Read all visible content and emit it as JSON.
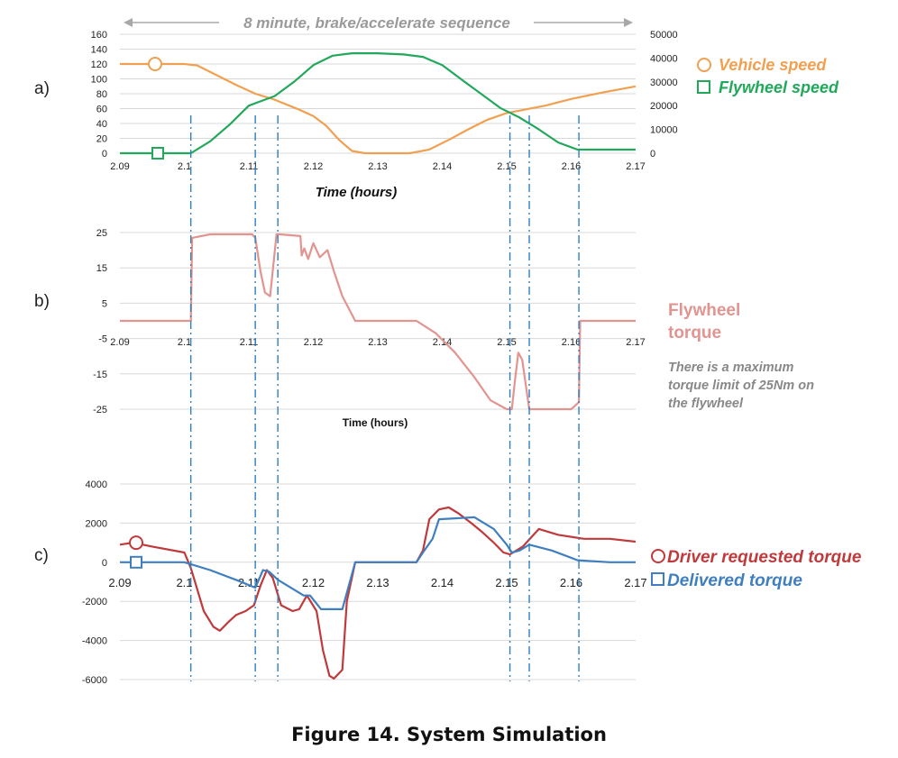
{
  "figure_caption": "Figure 14.  System Simulation",
  "panel_labels": [
    "a)",
    "b)",
    "c)"
  ],
  "sequence_label": "8 minute, brake/accelerate sequence",
  "colors": {
    "vehicle_speed": "#F0A050",
    "flywheel_speed": "#22A85A",
    "flywheel_torque": "#E29490",
    "driver_requested": "#C0393B",
    "delivered": "#3F7FBF",
    "event_lines": "#2F7FC1",
    "note": "#888888",
    "grid": "#d8d8d8"
  },
  "chart_data": [
    {
      "type": "line",
      "panel": "a)",
      "x_ticks": [
        "2.09",
        "2.1",
        "2.11",
        "2.12",
        "2.13",
        "2.14",
        "2.15",
        "2.16",
        "2.17"
      ],
      "xlabel": "Time (hours)",
      "xlim": [
        2.09,
        2.17
      ],
      "ylim_left": [
        0,
        160
      ],
      "y_ticks_left": [
        "0",
        "20",
        "40",
        "60",
        "80",
        "100",
        "120",
        "140",
        "160"
      ],
      "ylim_right": [
        0,
        50000
      ],
      "y_ticks_right": [
        "0",
        "10000",
        "20000",
        "30000",
        "40000",
        "50000"
      ],
      "grid": true,
      "legend": "right",
      "series": [
        {
          "name": "Vehicle speed",
          "axis": "left",
          "marker": "circle",
          "x": [
            2.09,
            2.1,
            2.102,
            2.105,
            2.108,
            2.111,
            2.114,
            2.118,
            2.12,
            2.122,
            2.124,
            2.126,
            2.128,
            2.13,
            2.135,
            2.138,
            2.141,
            2.144,
            2.147,
            2.15,
            2.153,
            2.156,
            2.16,
            2.165,
            2.17
          ],
          "values": [
            120,
            120,
            118,
            105,
            92,
            80,
            72,
            58,
            50,
            37,
            18,
            3,
            0,
            0,
            0,
            5,
            18,
            32,
            45,
            54,
            59,
            64,
            73,
            82,
            90
          ]
        },
        {
          "name": "Flywheel speed",
          "axis": "right",
          "marker": "square",
          "x": [
            2.09,
            2.101,
            2.104,
            2.107,
            2.11,
            2.112,
            2.114,
            2.117,
            2.12,
            2.123,
            2.126,
            2.13,
            2.134,
            2.137,
            2.14,
            2.143,
            2.146,
            2.149,
            2.152,
            2.155,
            2.158,
            2.161,
            2.165,
            2.17
          ],
          "values": [
            0,
            0,
            5000,
            12000,
            20000,
            22000,
            24000,
            30000,
            37000,
            41000,
            42000,
            42000,
            41500,
            40500,
            37000,
            31000,
            25000,
            19000,
            15000,
            10000,
            4500,
            1500,
            1500,
            1500
          ]
        }
      ]
    },
    {
      "type": "line",
      "panel": "b)",
      "x_ticks": [
        "2.09",
        "2.1",
        "2.11",
        "2.12",
        "2.13",
        "2.14",
        "2.15",
        "2.16",
        "2.17"
      ],
      "xlabel": "Time (hours)",
      "xlim": [
        2.09,
        2.17
      ],
      "ylim": [
        -25,
        25
      ],
      "y_ticks": [
        "-25",
        "-15",
        "-5",
        "5",
        "15",
        "25"
      ],
      "grid": true,
      "legend": "right",
      "series": [
        {
          "name": "Flywheel torque",
          "x": [
            2.09,
            2.101,
            2.1012,
            2.104,
            2.1105,
            2.111,
            2.1118,
            2.1125,
            2.1133,
            2.1143,
            2.1148,
            2.118,
            2.1182,
            2.1186,
            2.1192,
            2.12,
            2.121,
            2.1222,
            2.1232,
            2.1245,
            2.1265,
            2.1285,
            2.136,
            2.139,
            2.142,
            2.145,
            2.1475,
            2.15,
            2.1508,
            2.1513,
            2.1518,
            2.1524,
            2.1535,
            2.16,
            2.1612,
            2.1614,
            2.17
          ],
          "values": [
            0,
            0,
            23.5,
            24.5,
            24.5,
            23.5,
            14,
            8,
            7,
            24.5,
            24.5,
            24,
            18.5,
            20.5,
            17.5,
            22,
            18,
            20,
            14,
            7,
            0,
            0,
            0,
            -3.5,
            -9,
            -16,
            -22.5,
            -25,
            -25,
            -16.5,
            -9,
            -11,
            -25,
            -25,
            -23,
            0,
            0
          ]
        }
      ]
    },
    {
      "type": "line",
      "panel": "c)",
      "x_ticks": [
        "2.09",
        "2.1",
        "2.11",
        "2.12",
        "2.13",
        "2.14",
        "2.15",
        "2.16",
        "2.17"
      ],
      "xlim": [
        2.09,
        2.17
      ],
      "ylim": [
        -6000,
        4000
      ],
      "y_ticks": [
        "-6000",
        "-4000",
        "-2000",
        "0",
        "2000",
        "4000"
      ],
      "grid": true,
      "legend": "right",
      "series": [
        {
          "name": "Driver requested  torque",
          "marker": "circle",
          "x": [
            2.09,
            2.092,
            2.095,
            2.1,
            2.101,
            2.103,
            2.1045,
            2.1055,
            2.107,
            2.108,
            2.1095,
            2.1108,
            2.1118,
            2.1128,
            2.1137,
            2.115,
            2.1168,
            2.1178,
            2.119,
            2.1205,
            2.1215,
            2.1225,
            2.1232,
            2.1245,
            2.1252,
            2.1265,
            2.136,
            2.137,
            2.138,
            2.1395,
            2.141,
            2.1425,
            2.1445,
            2.146,
            2.148,
            2.1495,
            2.1505,
            2.1525,
            2.155,
            2.158,
            2.162,
            2.166,
            2.17
          ],
          "values": [
            900,
            1000,
            800,
            500,
            -300,
            -2500,
            -3300,
            -3500,
            -3000,
            -2700,
            -2500,
            -2200,
            -1200,
            -400,
            -800,
            -2200,
            -2500,
            -2400,
            -1700,
            -2500,
            -4500,
            -5800,
            -5950,
            -5500,
            -2000,
            0,
            0,
            600,
            2200,
            2700,
            2800,
            2500,
            2000,
            1600,
            1000,
            500,
            400,
            800,
            1700,
            1400,
            1200,
            1200,
            1050
          ]
        },
        {
          "name": "Delivered torque",
          "marker": "square",
          "x": [
            2.09,
            2.1,
            2.104,
            2.108,
            2.111,
            2.1122,
            2.1132,
            2.1145,
            2.117,
            2.1185,
            2.1195,
            2.1212,
            2.1245,
            2.1265,
            2.136,
            2.137,
            2.1385,
            2.1395,
            2.145,
            2.148,
            2.15,
            2.1508,
            2.152,
            2.1535,
            2.157,
            2.161,
            2.166,
            2.17
          ],
          "values": [
            0,
            0,
            -400,
            -900,
            -1300,
            -400,
            -500,
            -900,
            -1400,
            -1700,
            -1700,
            -2400,
            -2400,
            0,
            0,
            500,
            1200,
            2200,
            2300,
            1700,
            900,
            500,
            600,
            900,
            600,
            100,
            0,
            0
          ]
        }
      ]
    }
  ],
  "legend_labels": {
    "vehicle_speed": "Vehicle speed",
    "flywheel_speed": "Flywheel speed",
    "flywheel_torque_line1": "Flywheel",
    "flywheel_torque_line2": "torque",
    "driver_requested": "Driver requested  torque",
    "delivered": "Delivered torque"
  },
  "annotation_lines": [
    "There is a maximum",
    "torque limit of 25Nm on",
    "the flywheel"
  ],
  "event_times_hours": [
    2.101,
    2.111,
    2.1145,
    2.1505,
    2.1535,
    2.1612
  ]
}
